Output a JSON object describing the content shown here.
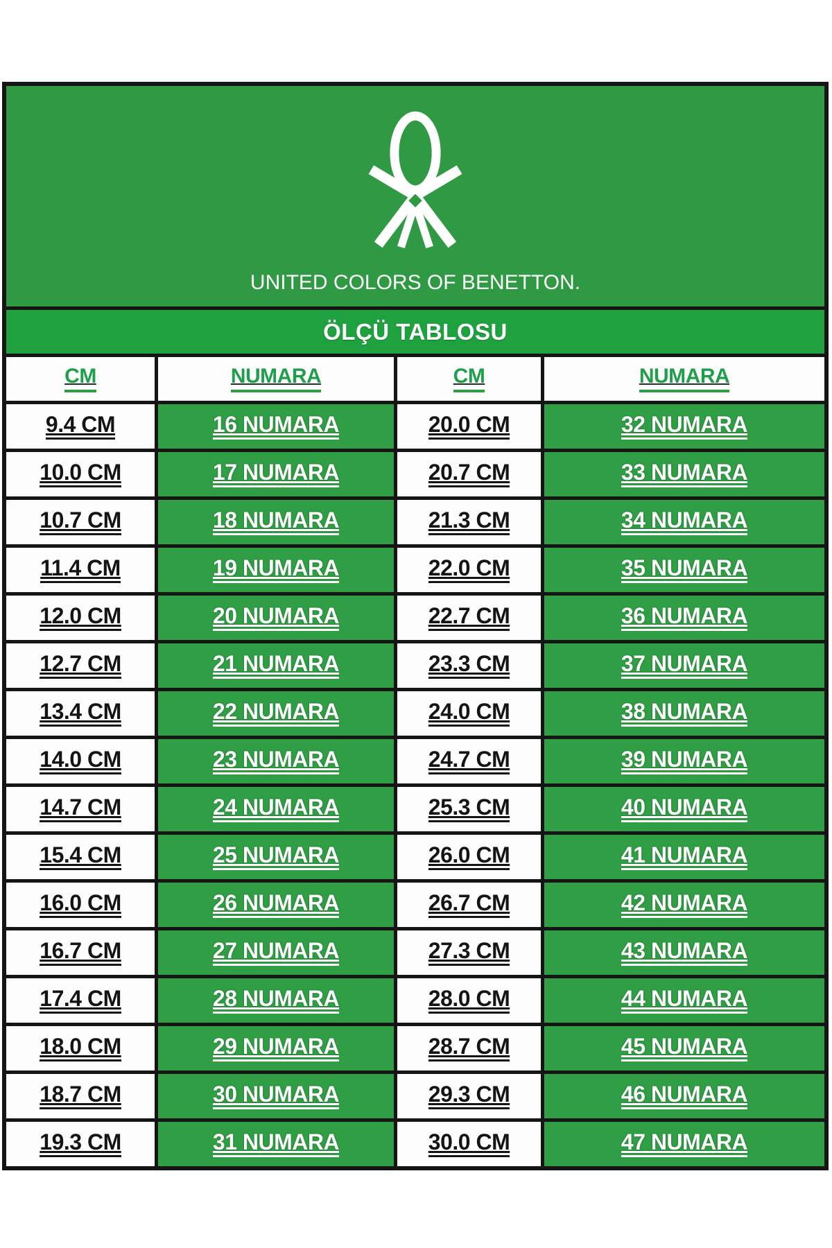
{
  "brand": {
    "logo_text": "UNITED COLORS OF BENETTON.",
    "knot_icon": "benetton-knot-icon"
  },
  "title": "ÖLÇÜ TABLOSU",
  "table": {
    "headers": [
      "CM",
      "NUMARA",
      "CM",
      "NUMARA"
    ],
    "rows": [
      [
        "9.4 CM",
        "16 NUMARA",
        "20.0 CM",
        "32 NUMARA"
      ],
      [
        "10.0 CM",
        "17 NUMARA",
        "20.7 CM",
        "33 NUMARA"
      ],
      [
        "10.7 CM",
        "18 NUMARA",
        "21.3 CM",
        "34 NUMARA"
      ],
      [
        "11.4 CM",
        "19 NUMARA",
        "22.0 CM",
        "35 NUMARA"
      ],
      [
        "12.0 CM",
        "20 NUMARA",
        "22.7 CM",
        "36 NUMARA"
      ],
      [
        "12.7 CM",
        "21 NUMARA",
        "23.3 CM",
        "37 NUMARA"
      ],
      [
        "13.4 CM",
        "22 NUMARA",
        "24.0 CM",
        "38 NUMARA"
      ],
      [
        "14.0 CM",
        "23 NUMARA",
        "24.7 CM",
        "39 NUMARA"
      ],
      [
        "14.7 CM",
        "24 NUMARA",
        "25.3 CM",
        "40 NUMARA"
      ],
      [
        "15.4 CM",
        "25 NUMARA",
        "26.0 CM",
        "41 NUMARA"
      ],
      [
        "16.0 CM",
        "26 NUMARA",
        "26.7 CM",
        "42 NUMARA"
      ],
      [
        "16.7 CM",
        "27 NUMARA",
        "27.3 CM",
        "43 NUMARA"
      ],
      [
        "17.4 CM",
        "28 NUMARA",
        "28.0 CM",
        "44 NUMARA"
      ],
      [
        "18.0 CM",
        "29 NUMARA",
        "28.7 CM",
        "45 NUMARA"
      ],
      [
        "18.7 CM",
        "30 NUMARA",
        "29.3 CM",
        "46 NUMARA"
      ],
      [
        "19.3 CM",
        "31 NUMARA",
        "30.0 CM",
        "47 NUMARA"
      ]
    ]
  },
  "colors": {
    "logo_block_green": "#2f9a43",
    "banner_green": "#1ea13e",
    "row_green": "#2f9e44",
    "header_text_green": "#1f9e4b",
    "grid_black": "#151515",
    "text_white": "#ffffff",
    "text_black": "#141414"
  }
}
